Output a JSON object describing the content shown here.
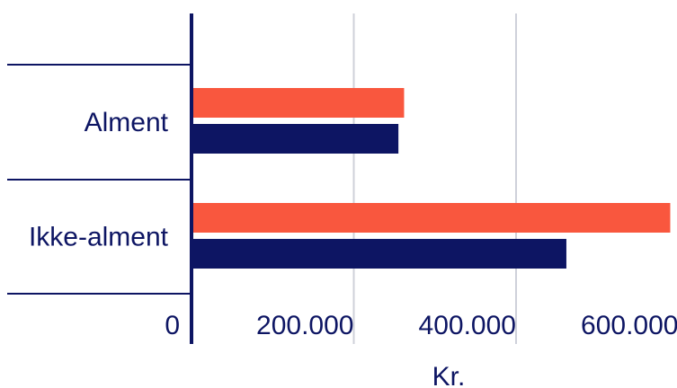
{
  "chart_data": {
    "type": "bar",
    "orientation": "horizontal",
    "categories": [
      "Alment",
      "Ikke-alment"
    ],
    "series": [
      {
        "values": [
          262000,
          590000
        ]
      },
      {
        "values": [
          255000,
          462000
        ]
      }
    ],
    "xlabel": "Kr.",
    "ylabel": "",
    "title": "",
    "xlim": [
      0,
      600000
    ],
    "xticks": [
      0,
      200000,
      400000,
      600000
    ],
    "xtick_labels": [
      "0",
      "200.000",
      "400.000",
      "600.000"
    ],
    "grid": true,
    "legend": "none"
  },
  "colors": {
    "series": [
      "#f9573e",
      "#0d1563"
    ],
    "axis": "#0d1563",
    "grid": "#cfd1da",
    "text": "#0d1563"
  }
}
